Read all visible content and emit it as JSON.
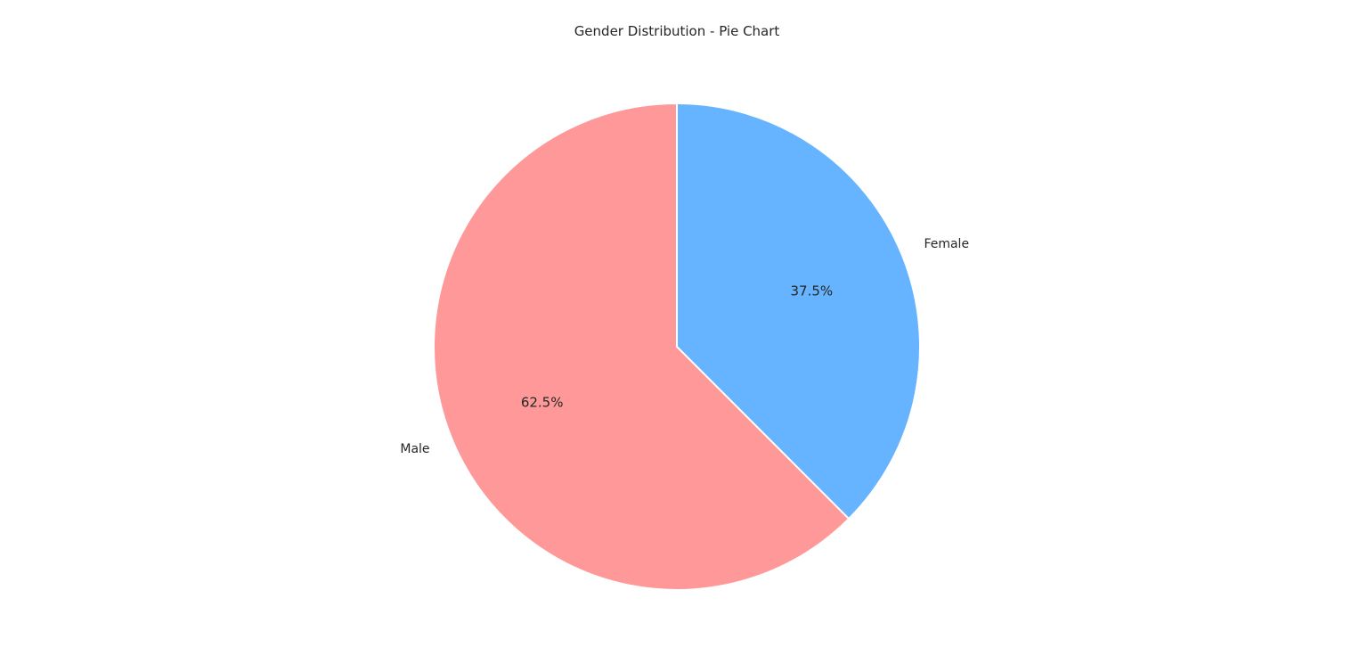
{
  "chart_data": {
    "type": "pie",
    "title": "Gender Distribution - Pie Chart",
    "start_angle_deg": 90,
    "direction": "clockwise",
    "slices": [
      {
        "label": "Female",
        "value": 37.5,
        "pct_text": "37.5%",
        "color": "#66b3ff"
      },
      {
        "label": "Male",
        "value": 62.5,
        "pct_text": "62.5%",
        "color": "#ff9999"
      }
    ]
  }
}
